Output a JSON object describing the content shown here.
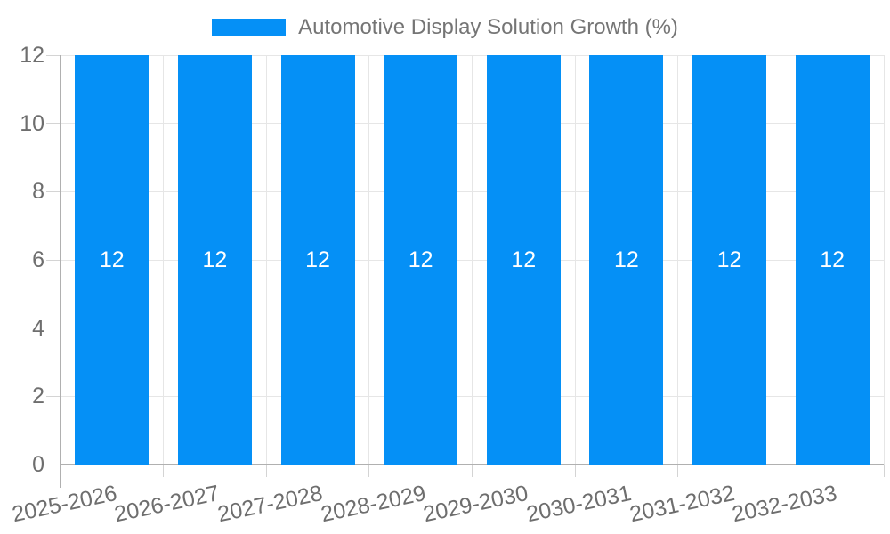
{
  "legend": {
    "label": "Automotive Display Solution Growth (%)"
  },
  "chart_data": {
    "type": "bar",
    "title": "Automotive Display Solution Growth (%)",
    "categories": [
      "2025-2026",
      "2026-2027",
      "2027-2028",
      "2028-2029",
      "2029-2030",
      "2030-2031",
      "2031-2032",
      "2032-2033"
    ],
    "values": [
      12,
      12,
      12,
      12,
      12,
      12,
      12,
      12
    ],
    "series": [
      {
        "name": "Automotive Display Solution Growth (%)",
        "values": [
          12,
          12,
          12,
          12,
          12,
          12,
          12,
          12
        ]
      }
    ],
    "xlabel": "",
    "ylabel": "",
    "ylim": [
      0,
      12
    ],
    "yticks": [
      0,
      2,
      4,
      6,
      8,
      10,
      12
    ],
    "bar_value_labels": [
      "12",
      "12",
      "12",
      "12",
      "12",
      "12",
      "12",
      "12"
    ],
    "grid": true,
    "legend_position": "top"
  },
  "colors": {
    "bar": "#0590f6",
    "bar_label": "#ffffff",
    "grid": "#e6e6e6",
    "axis_line": "#b0b0b0",
    "tick": "#d4d4d4",
    "axis_text": "#6e6e6e",
    "legend_text": "#757575",
    "background": "#ffffff"
  }
}
